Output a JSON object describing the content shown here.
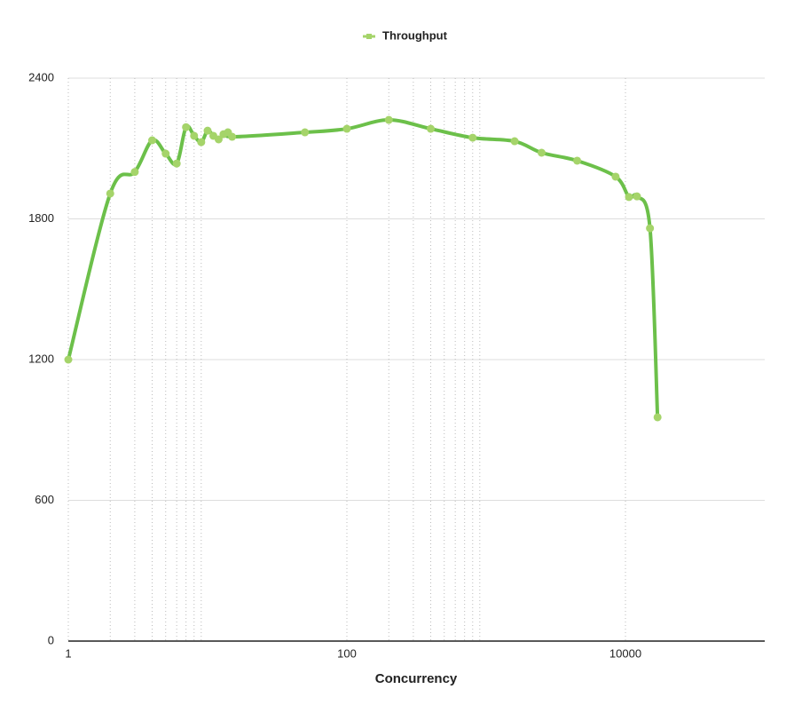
{
  "chart_data": {
    "type": "line",
    "legend": "top",
    "x_label": "Concurrency",
    "x_scale": "log",
    "x": [
      1,
      2,
      3,
      4,
      5,
      6,
      7,
      8,
      9,
      10,
      11,
      12,
      13,
      14,
      15,
      50,
      100,
      200,
      400,
      800,
      1600,
      2500,
      4500,
      8500,
      10600,
      12100,
      15000,
      17000
    ],
    "series": [
      {
        "name": "Throughput",
        "color": "#6cc04a",
        "marker_color": "#a5d46a",
        "values": [
          1200,
          1908,
          2000,
          2135,
          2078,
          2036,
          2191,
          2154,
          2127,
          2176,
          2154,
          2139,
          2161,
          2169,
          2150,
          2169,
          2184,
          2222,
          2184,
          2146,
          2131,
          2082,
          2048,
          1980,
          1893,
          1896,
          1760,
          954
        ]
      }
    ],
    "xlim": [
      1,
      100000
    ],
    "xticks": [
      1,
      100,
      10000
    ],
    "x_minor_grid": [
      2,
      3,
      4,
      5,
      6,
      7,
      8,
      9,
      200,
      300,
      400,
      500,
      600,
      700,
      800,
      900
    ],
    "ylim": [
      0,
      2400
    ],
    "yticks": [
      0,
      600,
      1200,
      1800,
      2400
    ],
    "grid": true
  }
}
